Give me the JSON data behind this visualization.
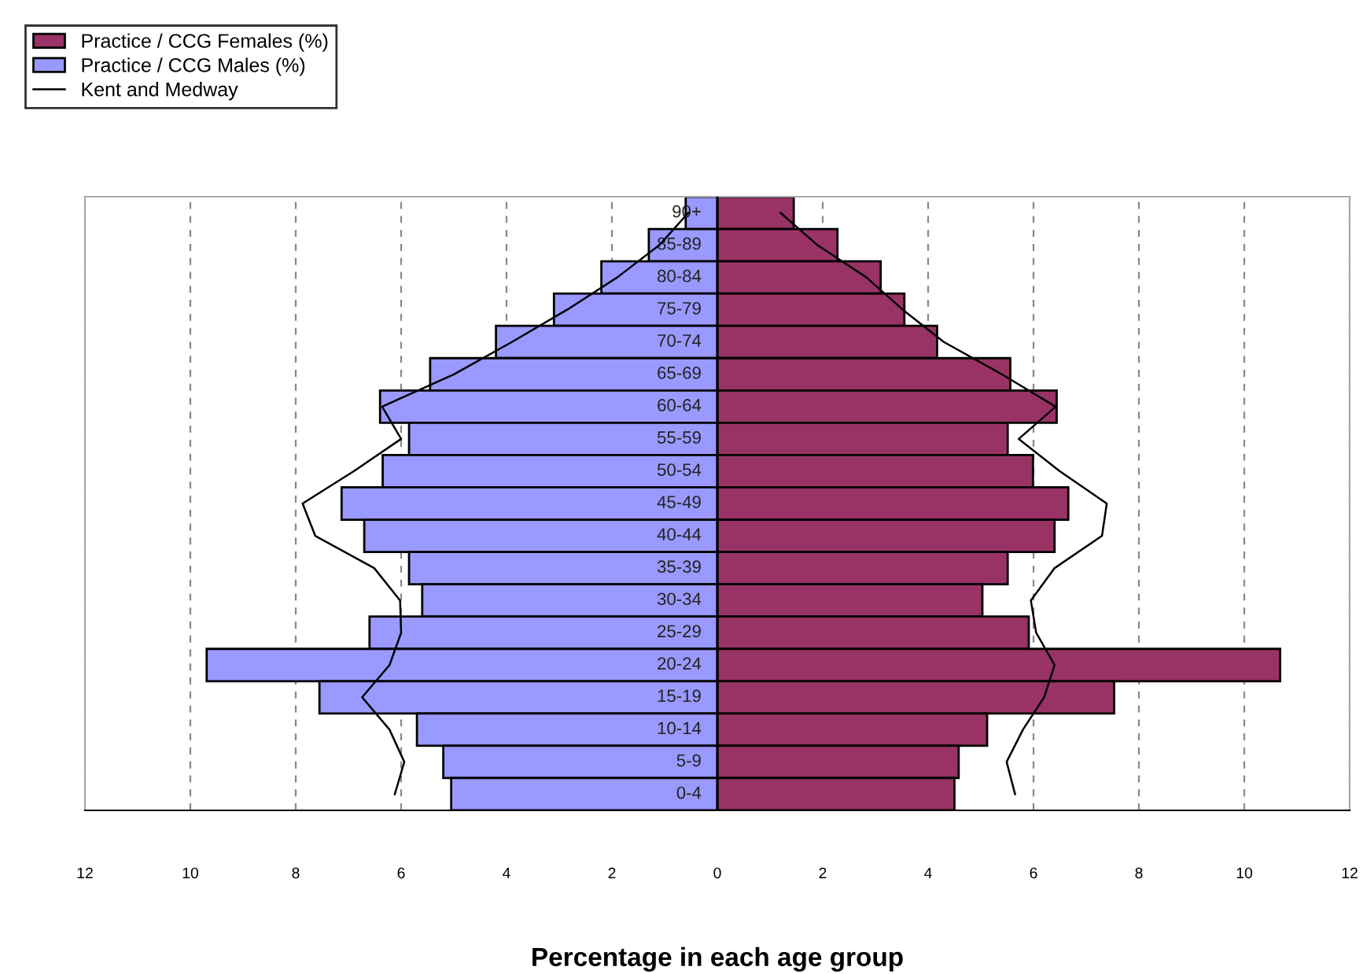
{
  "chart_data": {
    "type": "bar",
    "orientation": "horizontal",
    "stacked": true,
    "xlabel": "Percentage in each age group",
    "categories": [
      "90+",
      "85-89",
      "80-84",
      "75-79",
      "70-74",
      "65-69",
      "60-64",
      "55-59",
      "50-54",
      "45-49",
      "40-44",
      "35-39",
      "30-34",
      "25-29",
      "20-24",
      "15-19",
      "10-14",
      "5-9",
      "0-4"
    ],
    "series": [
      {
        "name": "Practice / CCG Females (%)",
        "color": "#993366",
        "values": [
          1.45,
          2.28,
          3.1,
          3.55,
          4.17,
          5.56,
          6.44,
          5.51,
          5.99,
          6.66,
          6.4,
          5.51,
          5.03,
          5.91,
          10.68,
          7.53,
          5.12,
          4.58,
          4.5
        ]
      },
      {
        "name": "Practice / CCG Males (%)",
        "color": "#9999ff",
        "values": [
          -0.6,
          -1.3,
          -2.2,
          -3.1,
          -4.2,
          -5.45,
          -6.4,
          -5.85,
          -6.35,
          -7.13,
          -6.7,
          -5.85,
          -5.6,
          -6.6,
          -9.69,
          -7.55,
          -5.7,
          -5.2,
          -5.05
        ]
      },
      {
        "name": "Kent and Medway",
        "type": "line",
        "color": "#000000",
        "values": [
          1.2,
          1.9,
          2.83,
          3.52,
          4.3,
          5.4,
          6.42,
          5.72,
          6.5,
          7.39,
          7.3,
          6.4,
          5.95,
          6.05,
          6.4,
          6.2,
          5.8,
          5.49,
          5.65
        ]
      },
      {
        "type": "line",
        "color": "#000000",
        "values": [
          -0.55,
          -1.1,
          -1.9,
          -2.85,
          -3.9,
          -5.0,
          -6.36,
          -6.0,
          -6.9,
          -7.87,
          -7.63,
          -6.51,
          -6.02,
          -6.0,
          -6.22,
          -6.74,
          -6.22,
          -5.94,
          -6.12
        ]
      }
    ],
    "xlim": [
      -12,
      12
    ],
    "xticks": [
      {
        "value": -12,
        "label": "12"
      },
      {
        "value": -10,
        "label": "10"
      },
      {
        "value": -8,
        "label": "8"
      },
      {
        "value": -6,
        "label": "6"
      },
      {
        "value": -4,
        "label": "4"
      },
      {
        "value": -2,
        "label": "2"
      },
      0,
      2,
      4,
      6,
      8,
      10,
      12
    ],
    "grid": "x",
    "legend": "top left",
    "marker": "none",
    "line_style": "solid"
  }
}
